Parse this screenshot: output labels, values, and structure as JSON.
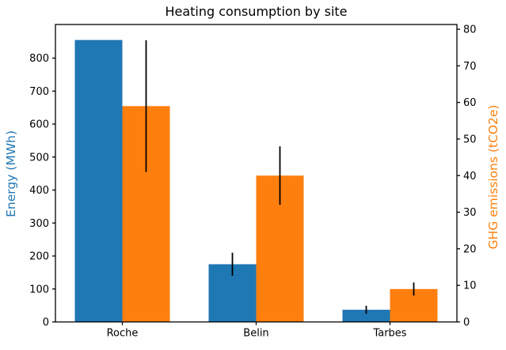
{
  "chart_data": {
    "type": "bar",
    "title": "Heating consumption by site",
    "categories": [
      "Roche",
      "Belin",
      "Tarbes"
    ],
    "series": [
      {
        "name": "Energy (MWh)",
        "axis": "left",
        "color": "#1f77b4",
        "values": [
          855,
          175,
          37
        ],
        "errors": [
          0,
          35,
          12
        ]
      },
      {
        "name": "GHG emissions (tCO2e)",
        "axis": "right",
        "color": "#ff7f0e",
        "values": [
          59,
          40,
          9
        ],
        "errors": [
          18,
          8,
          1.8
        ]
      }
    ],
    "left_axis": {
      "label": "Energy (MWh)",
      "color": "#1f77b4",
      "ticks": [
        0,
        100,
        200,
        300,
        400,
        500,
        600,
        700,
        800
      ],
      "lim": [
        0,
        902
      ]
    },
    "right_axis": {
      "label": "GHG emissions (tCO2e)",
      "color": "#ff7f0e",
      "ticks": [
        0,
        10,
        20,
        30,
        40,
        50,
        60,
        70,
        80
      ],
      "lim": [
        0,
        81.3
      ]
    },
    "error_color": "#000000",
    "spine_color": "#000000",
    "grid": false,
    "legend": "none"
  }
}
